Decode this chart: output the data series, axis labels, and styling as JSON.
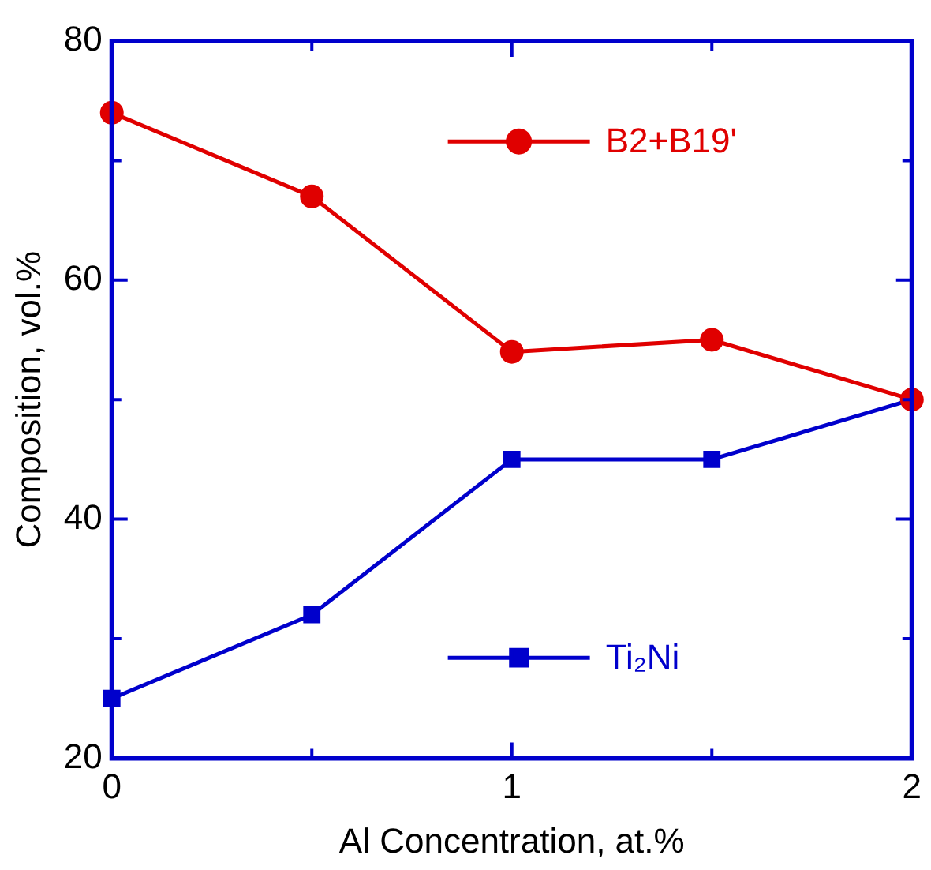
{
  "chart_data": {
    "type": "line",
    "xlabel": "Al Concentration, at.%",
    "ylabel": "Composition, vol.%",
    "x": [
      0,
      0.5,
      1,
      1.5,
      2
    ],
    "series": [
      {
        "name": "B2+B19'",
        "color": "#e00000",
        "values": [
          74,
          67,
          54,
          55,
          50
        ],
        "marker": "circle"
      },
      {
        "name": "Ti₂Ni",
        "color": "#0000cc",
        "values": [
          25,
          32,
          45,
          45,
          50
        ],
        "marker": "square"
      }
    ],
    "xlim": [
      0,
      2
    ],
    "xticks": [
      0,
      {
        "value": 0.5,
        "label": null
      },
      1,
      {
        "value": 1.5,
        "label": null
      },
      2
    ],
    "ylim": [
      20,
      80
    ],
    "yticks": [
      20,
      {
        "value": 30,
        "label": null
      },
      40,
      {
        "value": 50,
        "label": null
      },
      60,
      {
        "value": 70,
        "label": null
      },
      80
    ],
    "grid": false,
    "legend": "right",
    "line_style": "solid"
  }
}
